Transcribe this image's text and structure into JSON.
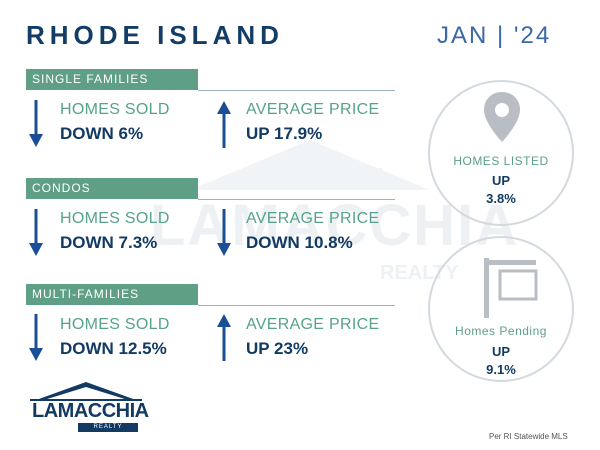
{
  "header": {
    "title": "RHODE ISLAND",
    "period": "JAN | '24"
  },
  "watermark": {
    "name": "LAMACCHIA",
    "tagline": "REALTY"
  },
  "sections": [
    {
      "label": "SINGLE FAMILIES",
      "homes_sold": {
        "label": "HOMES SOLD",
        "value": "DOWN 6%",
        "direction": "down"
      },
      "average_price": {
        "label": "AVERAGE PRICE",
        "value": "UP 17.9%",
        "direction": "up"
      }
    },
    {
      "label": "CONDOS",
      "homes_sold": {
        "label": "HOMES SOLD",
        "value": "DOWN 7.3%",
        "direction": "down"
      },
      "average_price": {
        "label": "AVERAGE PRICE",
        "value": "DOWN 10.8%",
        "direction": "down"
      }
    },
    {
      "label": "MULTI-FAMILIES",
      "homes_sold": {
        "label": "HOMES SOLD",
        "value": "DOWN 12.5%",
        "direction": "down"
      },
      "average_price": {
        "label": "AVERAGE PRICE",
        "value": "UP 23%",
        "direction": "up"
      }
    }
  ],
  "listed": {
    "label": "HOMES LISTED",
    "direction": "UP",
    "percent": "3.8%",
    "icon": "map-pin-icon"
  },
  "pending": {
    "label": "Homes Pending",
    "direction": "UP",
    "percent": "9.1%",
    "icon": "sold-sign-icon"
  },
  "logo": {
    "name": "LAMACCHIA",
    "tagline": "REALTY"
  },
  "footer": {
    "source": "Per RI Statewide MLS"
  },
  "colors": {
    "navy": "#123a63",
    "green": "#5f9f86",
    "blue": "#1a4f96"
  }
}
